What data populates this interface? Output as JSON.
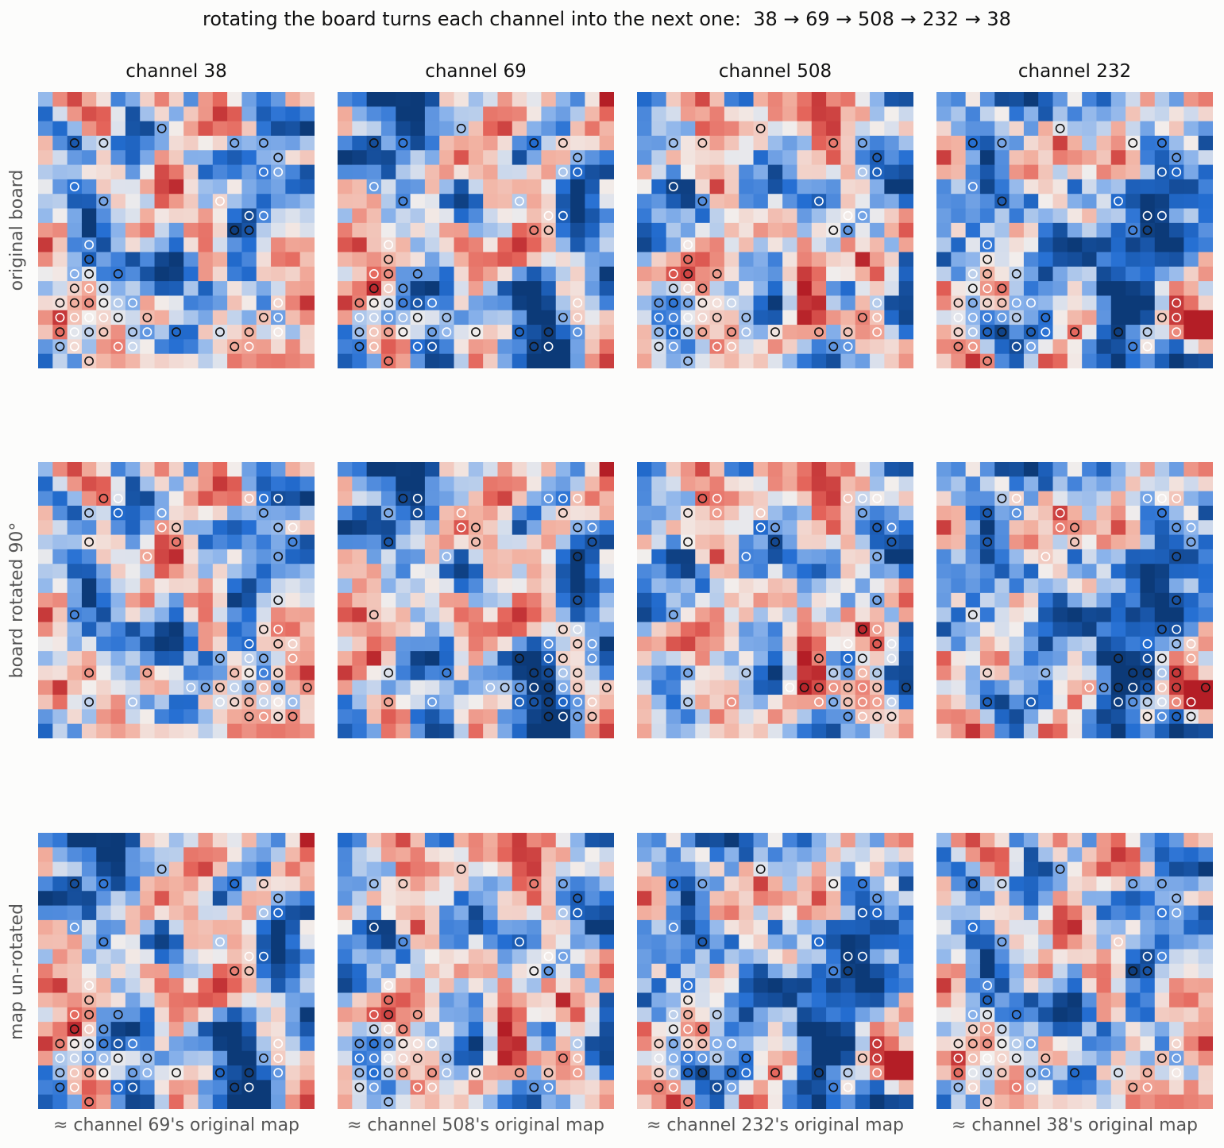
{
  "title": "rotating the board turns each channel into the next one:  38 → 69 → 508 → 232 → 38",
  "columns": [
    "channel 38",
    "channel 69",
    "channel 508",
    "channel 232"
  ],
  "rows": [
    "original board",
    "board rotated 90°",
    "map un-rotated"
  ],
  "column_footers": [
    "≈ channel 69's original map",
    "≈ channel 508's original map",
    "≈ channel 232's original map",
    "≈ channel 38's original map"
  ],
  "colors": {
    "colormap": "RdBu_r (diverging, blue = negative, red = positive)",
    "blue_strong": "#0e3f82",
    "blue_mid": "#5f9ae6",
    "neutral": "#f2eeec",
    "red_mid": "#f0a392",
    "red_strong": "#c52a2a",
    "black_stone": "#111111",
    "white_stone": "#ffffff",
    "background": "#fcfcfb"
  },
  "chart_data": {
    "type": "heatmap",
    "board_size": 19,
    "grid": false,
    "stone_marker": "circle outline",
    "stones": [
      {
        "c": 8,
        "r": 2,
        "color": "black"
      },
      {
        "c": 2,
        "r": 3,
        "color": "black"
      },
      {
        "c": 4,
        "r": 3,
        "color": "black"
      },
      {
        "c": 13,
        "r": 3,
        "color": "black"
      },
      {
        "c": 15,
        "r": 3,
        "color": "black"
      },
      {
        "c": 16,
        "r": 4,
        "color": "black"
      },
      {
        "c": 15,
        "r": 5,
        "color": "white"
      },
      {
        "c": 16,
        "r": 5,
        "color": "white"
      },
      {
        "c": 2,
        "r": 6,
        "color": "white"
      },
      {
        "c": 4,
        "r": 7,
        "color": "black"
      },
      {
        "c": 12,
        "r": 7,
        "color": "white"
      },
      {
        "c": 14,
        "r": 8,
        "color": "white"
      },
      {
        "c": 15,
        "r": 8,
        "color": "white"
      },
      {
        "c": 13,
        "r": 9,
        "color": "black"
      },
      {
        "c": 14,
        "r": 9,
        "color": "black"
      },
      {
        "c": 3,
        "r": 10,
        "color": "white"
      },
      {
        "c": 3,
        "r": 11,
        "color": "black"
      },
      {
        "c": 2,
        "r": 12,
        "color": "white"
      },
      {
        "c": 3,
        "r": 12,
        "color": "black"
      },
      {
        "c": 5,
        "r": 12,
        "color": "black"
      },
      {
        "c": 2,
        "r": 13,
        "color": "black"
      },
      {
        "c": 3,
        "r": 13,
        "color": "white"
      },
      {
        "c": 4,
        "r": 13,
        "color": "black"
      },
      {
        "c": 1,
        "r": 14,
        "color": "black"
      },
      {
        "c": 2,
        "r": 14,
        "color": "black"
      },
      {
        "c": 3,
        "r": 14,
        "color": "black"
      },
      {
        "c": 4,
        "r": 14,
        "color": "black"
      },
      {
        "c": 5,
        "r": 14,
        "color": "white"
      },
      {
        "c": 6,
        "r": 14,
        "color": "white"
      },
      {
        "c": 16,
        "r": 14,
        "color": "white"
      },
      {
        "c": 1,
        "r": 15,
        "color": "white"
      },
      {
        "c": 2,
        "r": 15,
        "color": "white"
      },
      {
        "c": 3,
        "r": 15,
        "color": "white"
      },
      {
        "c": 4,
        "r": 15,
        "color": "white"
      },
      {
        "c": 5,
        "r": 15,
        "color": "black"
      },
      {
        "c": 7,
        "r": 15,
        "color": "black"
      },
      {
        "c": 15,
        "r": 15,
        "color": "black"
      },
      {
        "c": 16,
        "r": 15,
        "color": "white"
      },
      {
        "c": 1,
        "r": 16,
        "color": "black"
      },
      {
        "c": 2,
        "r": 16,
        "color": "white"
      },
      {
        "c": 3,
        "r": 16,
        "color": "black"
      },
      {
        "c": 4,
        "r": 16,
        "color": "black"
      },
      {
        "c": 6,
        "r": 16,
        "color": "black"
      },
      {
        "c": 7,
        "r": 16,
        "color": "white"
      },
      {
        "c": 9,
        "r": 16,
        "color": "black"
      },
      {
        "c": 12,
        "r": 16,
        "color": "black"
      },
      {
        "c": 14,
        "r": 16,
        "color": "black"
      },
      {
        "c": 16,
        "r": 16,
        "color": "white"
      },
      {
        "c": 1,
        "r": 17,
        "color": "black"
      },
      {
        "c": 2,
        "r": 17,
        "color": "white"
      },
      {
        "c": 5,
        "r": 17,
        "color": "white"
      },
      {
        "c": 6,
        "r": 17,
        "color": "white"
      },
      {
        "c": 13,
        "r": 17,
        "color": "black"
      },
      {
        "c": 14,
        "r": 17,
        "color": "white"
      },
      {
        "c": 3,
        "r": 18,
        "color": "black"
      }
    ],
    "panels": [
      {
        "row": "original board",
        "column": "channel 38",
        "seed": 38,
        "rotation": 0,
        "values_note": "activation per point, estimated"
      },
      {
        "row": "original board",
        "column": "channel 69",
        "seed": 69,
        "rotation": 0
      },
      {
        "row": "original board",
        "column": "channel 508",
        "seed": 508,
        "rotation": 0
      },
      {
        "row": "original board",
        "column": "channel 232",
        "seed": 232,
        "rotation": 0
      },
      {
        "row": "board rotated 90°",
        "column": "channel 38",
        "seed": 38,
        "rotation": 90
      },
      {
        "row": "board rotated 90°",
        "column": "channel 69",
        "seed": 69,
        "rotation": 90
      },
      {
        "row": "board rotated 90°",
        "column": "channel 508",
        "seed": 508,
        "rotation": 90
      },
      {
        "row": "board rotated 90°",
        "column": "channel 232",
        "seed": 232,
        "rotation": 90
      },
      {
        "row": "map un-rotated",
        "column": "channel 38",
        "seed": 69,
        "rotation": 0
      },
      {
        "row": "map un-rotated",
        "column": "channel 69",
        "seed": 508,
        "rotation": 0
      },
      {
        "row": "map un-rotated",
        "column": "channel 508",
        "seed": 232,
        "rotation": 0
      },
      {
        "row": "map un-rotated",
        "column": "channel 232",
        "seed": 38,
        "rotation": 0
      }
    ]
  }
}
